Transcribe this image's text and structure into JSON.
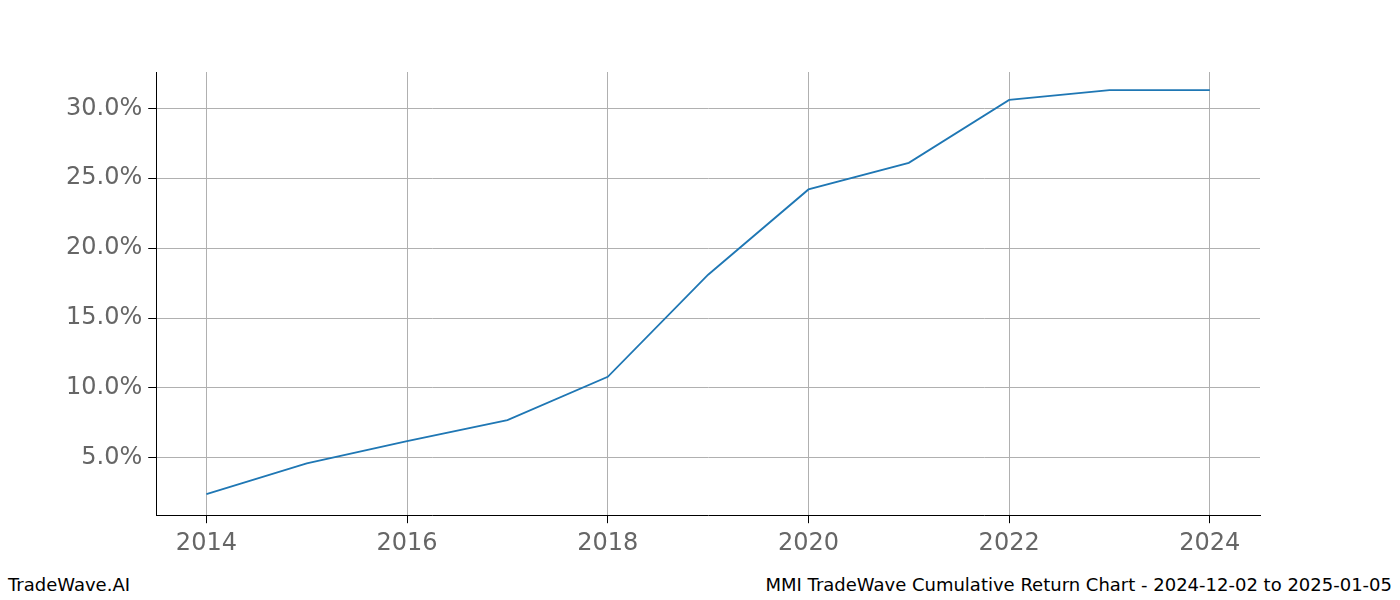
{
  "chart_data": {
    "type": "line",
    "x": [
      2014,
      2015,
      2016,
      2017,
      2018,
      2019,
      2020,
      2021,
      2022,
      2023,
      2024
    ],
    "values": [
      2.4,
      4.6,
      6.2,
      7.7,
      10.8,
      18.1,
      24.2,
      26.1,
      30.6,
      31.3,
      31.3
    ],
    "color": "#1f77b4",
    "marker": "none",
    "xlim": [
      2013.5,
      2024.5
    ],
    "xticks": [
      2014,
      2016,
      2018,
      2020,
      2022,
      2024
    ],
    "ylim": [
      0.9,
      32.6
    ],
    "yticks": [
      {
        "value": 5,
        "label": "5.0%"
      },
      {
        "value": 10,
        "label": "10.0%"
      },
      {
        "value": 15,
        "label": "15.0%"
      },
      {
        "value": 20,
        "label": "20.0%"
      },
      {
        "value": 25,
        "label": "25.0%"
      },
      {
        "value": 30,
        "label": "30.0%"
      }
    ],
    "grid": true,
    "annotations": [
      "TradeWave.AI",
      "MMI TradeWave Cumulative Return Chart - 2024-12-02 to 2025-01-05"
    ]
  }
}
